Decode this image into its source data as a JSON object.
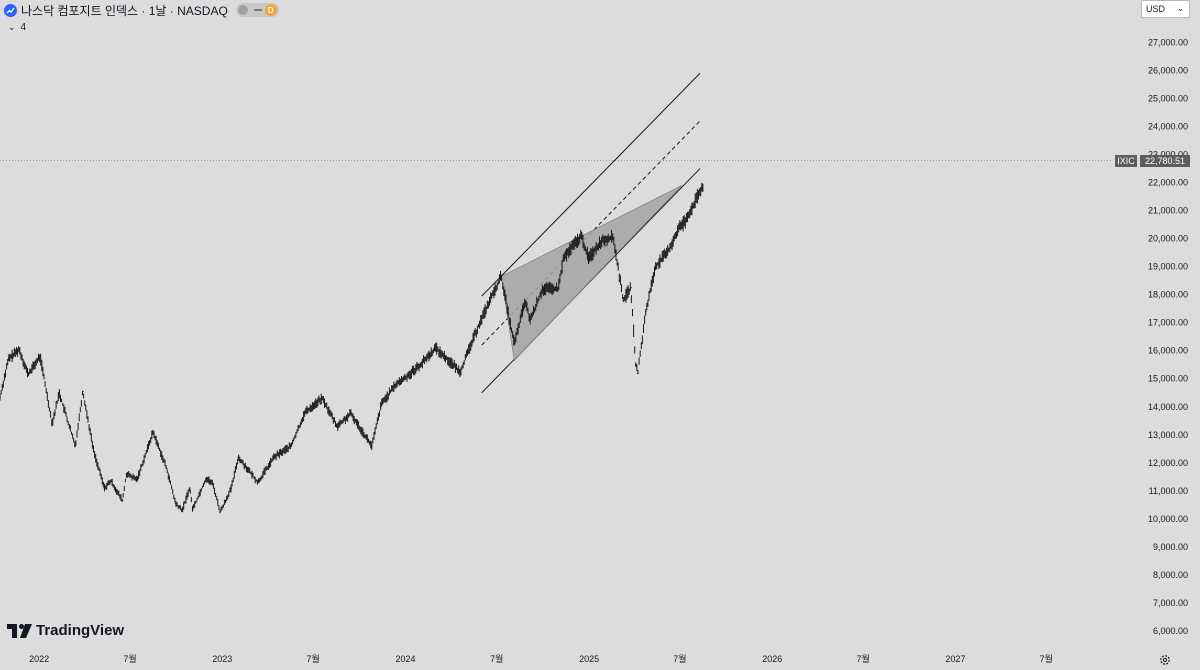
{
  "header": {
    "title": "나스닥 컴포지트 인덱스 · 1날 · NASDAQ",
    "indicator_count": "4",
    "timeframe_badge": "D",
    "currency": "USD"
  },
  "brand": {
    "name": "TradingView"
  },
  "price_tag": {
    "symbol": "IXIC",
    "price": "22,780.51",
    "value": 22780.51
  },
  "colors": {
    "background": "#dcdcdc",
    "candles": "#1a1a1a",
    "tag_bg": "#5d5d5d",
    "wedge_fill": "#a3a3a3",
    "logo_blue": "#2962ff",
    "badge_orange": "#f7a23a"
  },
  "icons": {
    "settings": "gear-icon",
    "dropdown": "chevron-down-icon",
    "logo": "tradingview-logo-icon"
  },
  "chart_data": {
    "type": "line",
    "title": "나스닥 컴포지트 인덱스 · 1날 · NASDAQ",
    "ylim": [
      5500,
      27800
    ],
    "y_ticks": [
      6000,
      7000,
      8000,
      9000,
      10000,
      11000,
      12000,
      13000,
      14000,
      15000,
      16000,
      17000,
      18000,
      19000,
      20000,
      21000,
      22000,
      23000,
      24000,
      25000,
      26000,
      27000
    ],
    "y_tick_labels": [
      "6,000.00",
      "7,000.00",
      "8,000.00",
      "9,000.00",
      "10,000.00",
      "11,000.00",
      "12,000.00",
      "13,000.00",
      "14,000.00",
      "15,000.00",
      "16,000.00",
      "17,000.00",
      "18,000.00",
      "19,000.00",
      "20,000.00",
      "21,000.00",
      "22,000.00",
      "23,000.00",
      "24,000.00",
      "25,000.00",
      "26,000.00",
      "27,000.00"
    ],
    "xlim": [
      "2021-10-15",
      "2027-11-01"
    ],
    "x_ticks": [
      "2022-01-01",
      "2022-07-01",
      "2023-01-01",
      "2023-07-01",
      "2024-01-01",
      "2024-07-01",
      "2025-01-01",
      "2025-07-01",
      "2026-01-01",
      "2026-07-01",
      "2027-01-01",
      "2027-07-01"
    ],
    "x_tick_labels": [
      "2022",
      "7월",
      "2023",
      "7월",
      "2024",
      "7월",
      "2025",
      "7월",
      "2026",
      "7월",
      "2027",
      "7월"
    ],
    "grid": false,
    "series": [
      {
        "x": [
          "2021-10-15",
          "2021-11-01",
          "2021-11-22",
          "2021-12-10",
          "2022-01-03",
          "2022-01-27",
          "2022-02-10",
          "2022-03-14",
          "2022-03-29",
          "2022-04-20",
          "2022-05-11",
          "2022-05-24",
          "2022-06-16",
          "2022-06-24",
          "2022-07-15",
          "2022-08-16",
          "2022-09-12",
          "2022-09-30",
          "2022-10-13",
          "2022-10-28",
          "2022-11-03",
          "2022-11-30",
          "2022-12-13",
          "2022-12-28",
          "2023-01-19",
          "2023-02-02",
          "2023-03-13",
          "2023-04-14",
          "2023-05-18",
          "2023-06-15",
          "2023-07-19",
          "2023-08-18",
          "2023-09-14",
          "2023-10-26",
          "2023-11-14",
          "2023-12-13",
          "2023-12-29",
          "2024-01-31",
          "2024-03-01",
          "2024-04-19",
          "2024-05-28",
          "2024-06-20",
          "2024-07-10",
          "2024-07-24",
          "2024-08-05",
          "2024-08-26",
          "2024-09-06",
          "2024-09-30",
          "2024-10-31",
          "2024-11-11",
          "2024-12-16",
          "2024-12-31",
          "2025-01-27",
          "2025-02-18",
          "2025-03-10",
          "2025-03-25",
          "2025-04-04",
          "2025-04-08",
          "2025-04-24",
          "2025-05-13",
          "2025-06-06",
          "2025-06-30",
          "2025-07-10",
          "2025-07-25",
          "2025-08-14"
        ],
        "values": [
          14350,
          15700,
          16050,
          15150,
          15800,
          13400,
          14500,
          12600,
          14550,
          12400,
          11100,
          11350,
          10650,
          11600,
          11400,
          13100,
          11800,
          10550,
          10300,
          11100,
          10350,
          11450,
          11250,
          10250,
          11100,
          12200,
          11300,
          12200,
          12600,
          13800,
          14300,
          13300,
          13750,
          12600,
          14100,
          14800,
          15000,
          15500,
          16100,
          15250,
          17000,
          17900,
          18650,
          17300,
          16250,
          17750,
          17100,
          18200,
          18200,
          19300,
          20100,
          19300,
          19950,
          20050,
          17800,
          18250,
          15500,
          15200,
          17400,
          19000,
          19500,
          20400,
          20600,
          21100,
          21800
        ]
      }
    ],
    "annotations": [
      {
        "type": "channel_upper",
        "from": [
          "2024-06-01",
          17950
        ],
        "to": [
          "2025-08-10",
          25900
        ]
      },
      {
        "type": "channel_middle_dashed",
        "from": [
          "2024-06-01",
          16200
        ],
        "to": [
          "2025-08-10",
          24200
        ]
      },
      {
        "type": "channel_lower",
        "from": [
          "2024-06-01",
          14500
        ],
        "to": [
          "2025-08-10",
          22500
        ]
      },
      {
        "type": "rising_wedge",
        "points": [
          [
            "2024-07-10",
            18650
          ],
          [
            "2025-07-05",
            21900
          ],
          [
            "2024-08-05",
            15650
          ]
        ]
      }
    ]
  }
}
